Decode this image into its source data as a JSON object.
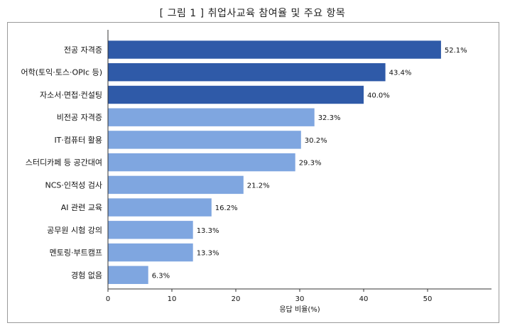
{
  "title": "[ 그림 1 ] 취업사교육 참여율 및 주요 항목",
  "chart_data": {
    "type": "bar",
    "orientation": "horizontal",
    "categories": [
      "전공 자격증",
      "어학(토익·토스·OPIc 등)",
      "자소서·면접·컨설팅",
      "비전공 자격증",
      "IT·컴퓨터 활용",
      "스터디카페 등 공간대여",
      "NCS·인적성 검사",
      "AI 관련 교육",
      "공무원 시험 강의",
      "멘토링·부트캠프",
      "경험 없음"
    ],
    "values": [
      52.1,
      43.4,
      40.0,
      32.3,
      30.2,
      29.3,
      21.2,
      16.2,
      13.3,
      13.3,
      6.3
    ],
    "value_labels": [
      "52.1%",
      "43.4%",
      "40.0%",
      "32.3%",
      "30.2%",
      "29.3%",
      "21.2%",
      "16.2%",
      "13.3%",
      "13.3%",
      "6.3%"
    ],
    "highlight_count": 3,
    "xlabel": "응답 비율(%)",
    "xlim": [
      0,
      60
    ],
    "xticks": [
      "0",
      "10",
      "20",
      "30",
      "40",
      "50"
    ],
    "grid": false,
    "colors": {
      "highlight": "#2f5aa8",
      "default": "#7fa6e0",
      "axis": "#333333"
    }
  }
}
